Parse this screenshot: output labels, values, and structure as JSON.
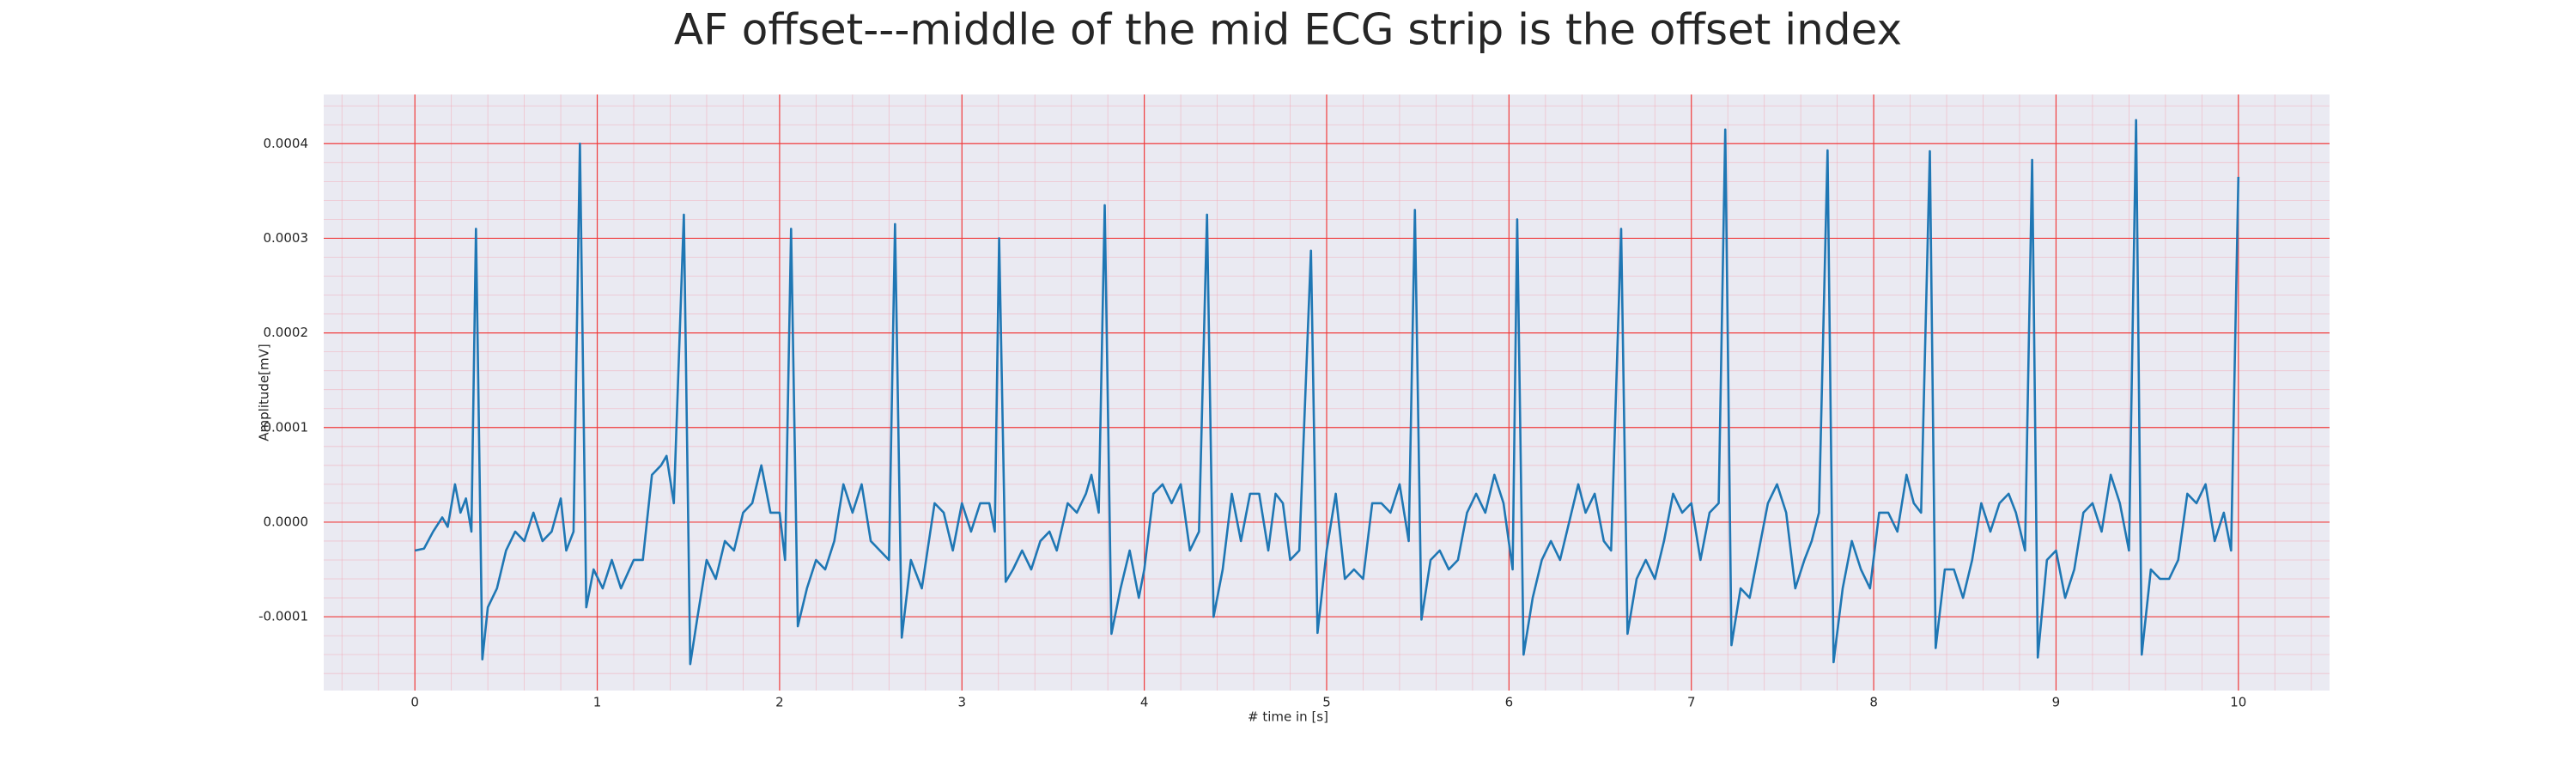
{
  "chart_data": {
    "type": "line",
    "title": "AF offset---middle of the mid ECG strip is the offset index",
    "xlabel": "# time in [s]",
    "ylabel": "Amplitude[mV]",
    "color": "#1f77b4",
    "grid": true,
    "minor_grid": true,
    "xlim": [
      -0.5,
      10.5
    ],
    "ylim": [
      -0.000178,
      0.000452
    ],
    "xticks": [
      0,
      1,
      2,
      3,
      4,
      5,
      6,
      7,
      8,
      9,
      10
    ],
    "yticks": [
      {
        "value": -0.0001,
        "label": "-0.0001"
      },
      {
        "value": 0,
        "label": "0.0000"
      },
      {
        "value": 0.0001,
        "label": "0.0001"
      },
      {
        "value": 0.0002,
        "label": "0.0002"
      },
      {
        "value": 0.0003,
        "label": "0.0003"
      },
      {
        "value": 0.0004,
        "label": "0.0004"
      }
    ],
    "x": [
      0,
      0.05,
      0.1,
      0.15,
      0.18,
      0.22,
      0.25,
      0.28,
      0.31,
      0.335,
      0.37,
      0.4,
      0.45,
      0.5,
      0.55,
      0.6,
      0.65,
      0.7,
      0.75,
      0.8,
      0.83,
      0.87,
      0.905,
      0.94,
      0.98,
      1.03,
      1.08,
      1.13,
      1.2,
      1.25,
      1.3,
      1.35,
      1.38,
      1.42,
      1.475,
      1.51,
      1.55,
      1.6,
      1.65,
      1.7,
      1.75,
      1.8,
      1.85,
      1.9,
      1.95,
      2.0,
      2.03,
      2.063,
      2.1,
      2.15,
      2.2,
      2.25,
      2.3,
      2.35,
      2.4,
      2.45,
      2.5,
      2.55,
      2.6,
      2.633,
      2.67,
      2.72,
      2.78,
      2.85,
      2.9,
      2.95,
      3.0,
      3.05,
      3.1,
      3.15,
      3.18,
      3.204,
      3.24,
      3.28,
      3.33,
      3.38,
      3.43,
      3.48,
      3.52,
      3.58,
      3.63,
      3.68,
      3.71,
      3.75,
      3.783,
      3.82,
      3.87,
      3.92,
      3.97,
      4.0,
      4.05,
      4.1,
      4.15,
      4.2,
      4.25,
      4.3,
      4.344,
      4.38,
      4.43,
      4.48,
      4.53,
      4.58,
      4.63,
      4.68,
      4.72,
      4.76,
      4.8,
      4.85,
      4.914,
      4.95,
      5.0,
      5.05,
      5.1,
      5.15,
      5.2,
      5.25,
      5.3,
      5.35,
      5.4,
      5.45,
      5.484,
      5.52,
      5.57,
      5.62,
      5.67,
      5.72,
      5.77,
      5.82,
      5.87,
      5.92,
      5.97,
      6.02,
      6.045,
      6.08,
      6.13,
      6.18,
      6.23,
      6.28,
      6.33,
      6.38,
      6.42,
      6.47,
      6.52,
      6.56,
      6.615,
      6.65,
      6.7,
      6.75,
      6.8,
      6.85,
      6.9,
      6.95,
      7.0,
      7.05,
      7.1,
      7.15,
      7.186,
      7.22,
      7.27,
      7.32,
      7.37,
      7.42,
      7.47,
      7.52,
      7.57,
      7.62,
      7.66,
      7.7,
      7.747,
      7.78,
      7.83,
      7.88,
      7.93,
      7.98,
      8.03,
      8.08,
      8.13,
      8.18,
      8.22,
      8.26,
      8.308,
      8.34,
      8.39,
      8.44,
      8.49,
      8.54,
      8.59,
      8.64,
      8.69,
      8.74,
      8.78,
      8.83,
      8.869,
      8.9,
      8.95,
      9.0,
      9.05,
      9.1,
      9.15,
      9.2,
      9.25,
      9.3,
      9.35,
      9.4,
      9.439,
      9.47,
      9.52,
      9.57,
      9.62,
      9.67,
      9.72,
      9.77,
      9.82,
      9.87,
      9.92,
      9.96,
      10.0
    ],
    "values": [
      -3e-05,
      -2.8e-05,
      -1e-05,
      5e-06,
      -5e-06,
      4e-05,
      1e-05,
      2.5e-05,
      -1e-05,
      0.00031,
      -0.000145,
      -9e-05,
      -7e-05,
      -3e-05,
      -1e-05,
      -2e-05,
      1e-05,
      -2e-05,
      -1e-05,
      2.5e-05,
      -3e-05,
      -1e-05,
      0.0004,
      -9e-05,
      -5e-05,
      -7e-05,
      -4e-05,
      -7e-05,
      -4e-05,
      -4e-05,
      5e-05,
      6e-05,
      7e-05,
      2e-05,
      0.000325,
      -0.00015,
      -0.0001,
      -4e-05,
      -6e-05,
      -2e-05,
      -3e-05,
      1e-05,
      2e-05,
      6e-05,
      1e-05,
      1e-05,
      -4e-05,
      0.00031,
      -0.00011,
      -7e-05,
      -4e-05,
      -5e-05,
      -2e-05,
      4e-05,
      1e-05,
      4e-05,
      -2e-05,
      -3e-05,
      -4e-05,
      0.000315,
      -0.000122,
      -4e-05,
      -7e-05,
      2e-05,
      1e-05,
      -3e-05,
      2e-05,
      -1e-05,
      2e-05,
      2e-05,
      -1e-05,
      0.0003,
      -6.3e-05,
      -5e-05,
      -3e-05,
      -5e-05,
      -2e-05,
      -1e-05,
      -3e-05,
      2e-05,
      1e-05,
      3e-05,
      5e-05,
      1e-05,
      0.000335,
      -0.000118,
      -7e-05,
      -3e-05,
      -8e-05,
      -5e-05,
      3e-05,
      4e-05,
      2e-05,
      4e-05,
      -3e-05,
      -1e-05,
      0.000325,
      -0.0001,
      -5e-05,
      3e-05,
      -2e-05,
      3e-05,
      3e-05,
      -3e-05,
      3e-05,
      2e-05,
      -4e-05,
      -3e-05,
      0.000287,
      -0.000117,
      -3e-05,
      3e-05,
      -6e-05,
      -5e-05,
      -6e-05,
      2e-05,
      2e-05,
      1e-05,
      4e-05,
      -2e-05,
      0.00033,
      -0.000103,
      -4e-05,
      -3e-05,
      -5e-05,
      -4e-05,
      1e-05,
      3e-05,
      1e-05,
      5e-05,
      2e-05,
      -5e-05,
      0.00032,
      -0.00014,
      -8e-05,
      -4e-05,
      -2e-05,
      -4e-05,
      0,
      4e-05,
      1e-05,
      3e-05,
      -2e-05,
      -3e-05,
      0.00031,
      -0.000118,
      -6e-05,
      -4e-05,
      -6e-05,
      -2e-05,
      3e-05,
      1e-05,
      2e-05,
      -4e-05,
      1e-05,
      2e-05,
      0.000415,
      -0.00013,
      -7e-05,
      -8e-05,
      -3e-05,
      2e-05,
      4e-05,
      1e-05,
      -7e-05,
      -4e-05,
      -2e-05,
      1e-05,
      0.000393,
      -0.000148,
      -7e-05,
      -2e-05,
      -5e-05,
      -7e-05,
      1e-05,
      1e-05,
      -1e-05,
      5e-05,
      2e-05,
      1e-05,
      0.000392,
      -0.000133,
      -5e-05,
      -5e-05,
      -8e-05,
      -4e-05,
      2e-05,
      -1e-05,
      2e-05,
      3e-05,
      1e-05,
      -3e-05,
      0.000383,
      -0.000143,
      -4e-05,
      -3e-05,
      -8e-05,
      -5e-05,
      1e-05,
      2e-05,
      -1e-05,
      5e-05,
      2e-05,
      -3e-05,
      0.000425,
      -0.00014,
      -5e-05,
      -6e-05,
      -6e-05,
      -4e-05,
      3e-05,
      2e-05,
      4e-05,
      -2e-05,
      1e-05,
      -3e-05,
      0.000365
    ]
  }
}
